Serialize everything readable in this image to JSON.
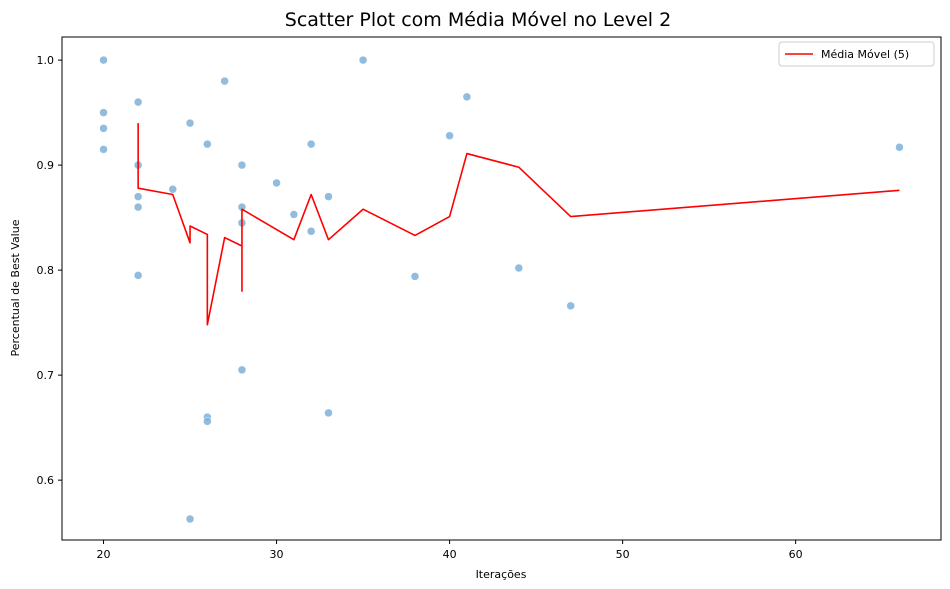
{
  "chart_data": {
    "type": "scatter",
    "title": "Scatter Plot com Média Móvel no Level 2",
    "xlabel": "Iterações",
    "ylabel": "Percentual de Best Value",
    "xlim": [
      17.6,
      68.4
    ],
    "ylim": [
      0.543,
      1.022
    ],
    "xticks": [
      20,
      30,
      40,
      50,
      60
    ],
    "yticks": [
      0.6,
      0.7,
      0.8,
      0.9,
      1.0
    ],
    "ytick_labels": [
      "0.6",
      "0.7",
      "0.8",
      "0.9",
      "1.0"
    ],
    "grid": false,
    "legend_position": "top-right",
    "scatter_color": "#7fb0d8",
    "line_color": "#ff0000",
    "points": [
      {
        "x": 20,
        "y": 1.0
      },
      {
        "x": 20,
        "y": 0.95
      },
      {
        "x": 20,
        "y": 0.935
      },
      {
        "x": 20,
        "y": 0.915
      },
      {
        "x": 22,
        "y": 0.96
      },
      {
        "x": 22,
        "y": 0.9
      },
      {
        "x": 22,
        "y": 0.87
      },
      {
        "x": 22,
        "y": 0.86
      },
      {
        "x": 22,
        "y": 0.795
      },
      {
        "x": 24,
        "y": 0.877
      },
      {
        "x": 25,
        "y": 0.94
      },
      {
        "x": 25,
        "y": 0.563
      },
      {
        "x": 26,
        "y": 0.92
      },
      {
        "x": 26,
        "y": 0.66
      },
      {
        "x": 26,
        "y": 0.656
      },
      {
        "x": 27,
        "y": 0.98
      },
      {
        "x": 28,
        "y": 0.9
      },
      {
        "x": 28,
        "y": 0.86
      },
      {
        "x": 28,
        "y": 0.845
      },
      {
        "x": 28,
        "y": 0.705
      },
      {
        "x": 30,
        "y": 0.883
      },
      {
        "x": 31,
        "y": 0.853
      },
      {
        "x": 32,
        "y": 0.92
      },
      {
        "x": 32,
        "y": 0.837
      },
      {
        "x": 33,
        "y": 0.87
      },
      {
        "x": 33,
        "y": 0.664
      },
      {
        "x": 35,
        "y": 1.0
      },
      {
        "x": 38,
        "y": 0.794
      },
      {
        "x": 40,
        "y": 0.928
      },
      {
        "x": 41,
        "y": 0.965
      },
      {
        "x": 44,
        "y": 0.802
      },
      {
        "x": 47,
        "y": 0.766
      },
      {
        "x": 66,
        "y": 0.917
      }
    ],
    "series": [
      {
        "name": "Média Móvel (5)",
        "x": [
          22,
          22,
          24,
          25,
          25,
          26,
          26,
          27,
          28,
          28,
          28,
          31,
          32,
          33,
          35,
          38,
          40,
          41,
          44,
          47,
          66
        ],
        "y": [
          0.94,
          0.878,
          0.872,
          0.826,
          0.842,
          0.834,
          0.748,
          0.831,
          0.823,
          0.78,
          0.858,
          0.829,
          0.872,
          0.829,
          0.858,
          0.833,
          0.851,
          0.911,
          0.898,
          0.851,
          0.876
        ]
      }
    ]
  }
}
